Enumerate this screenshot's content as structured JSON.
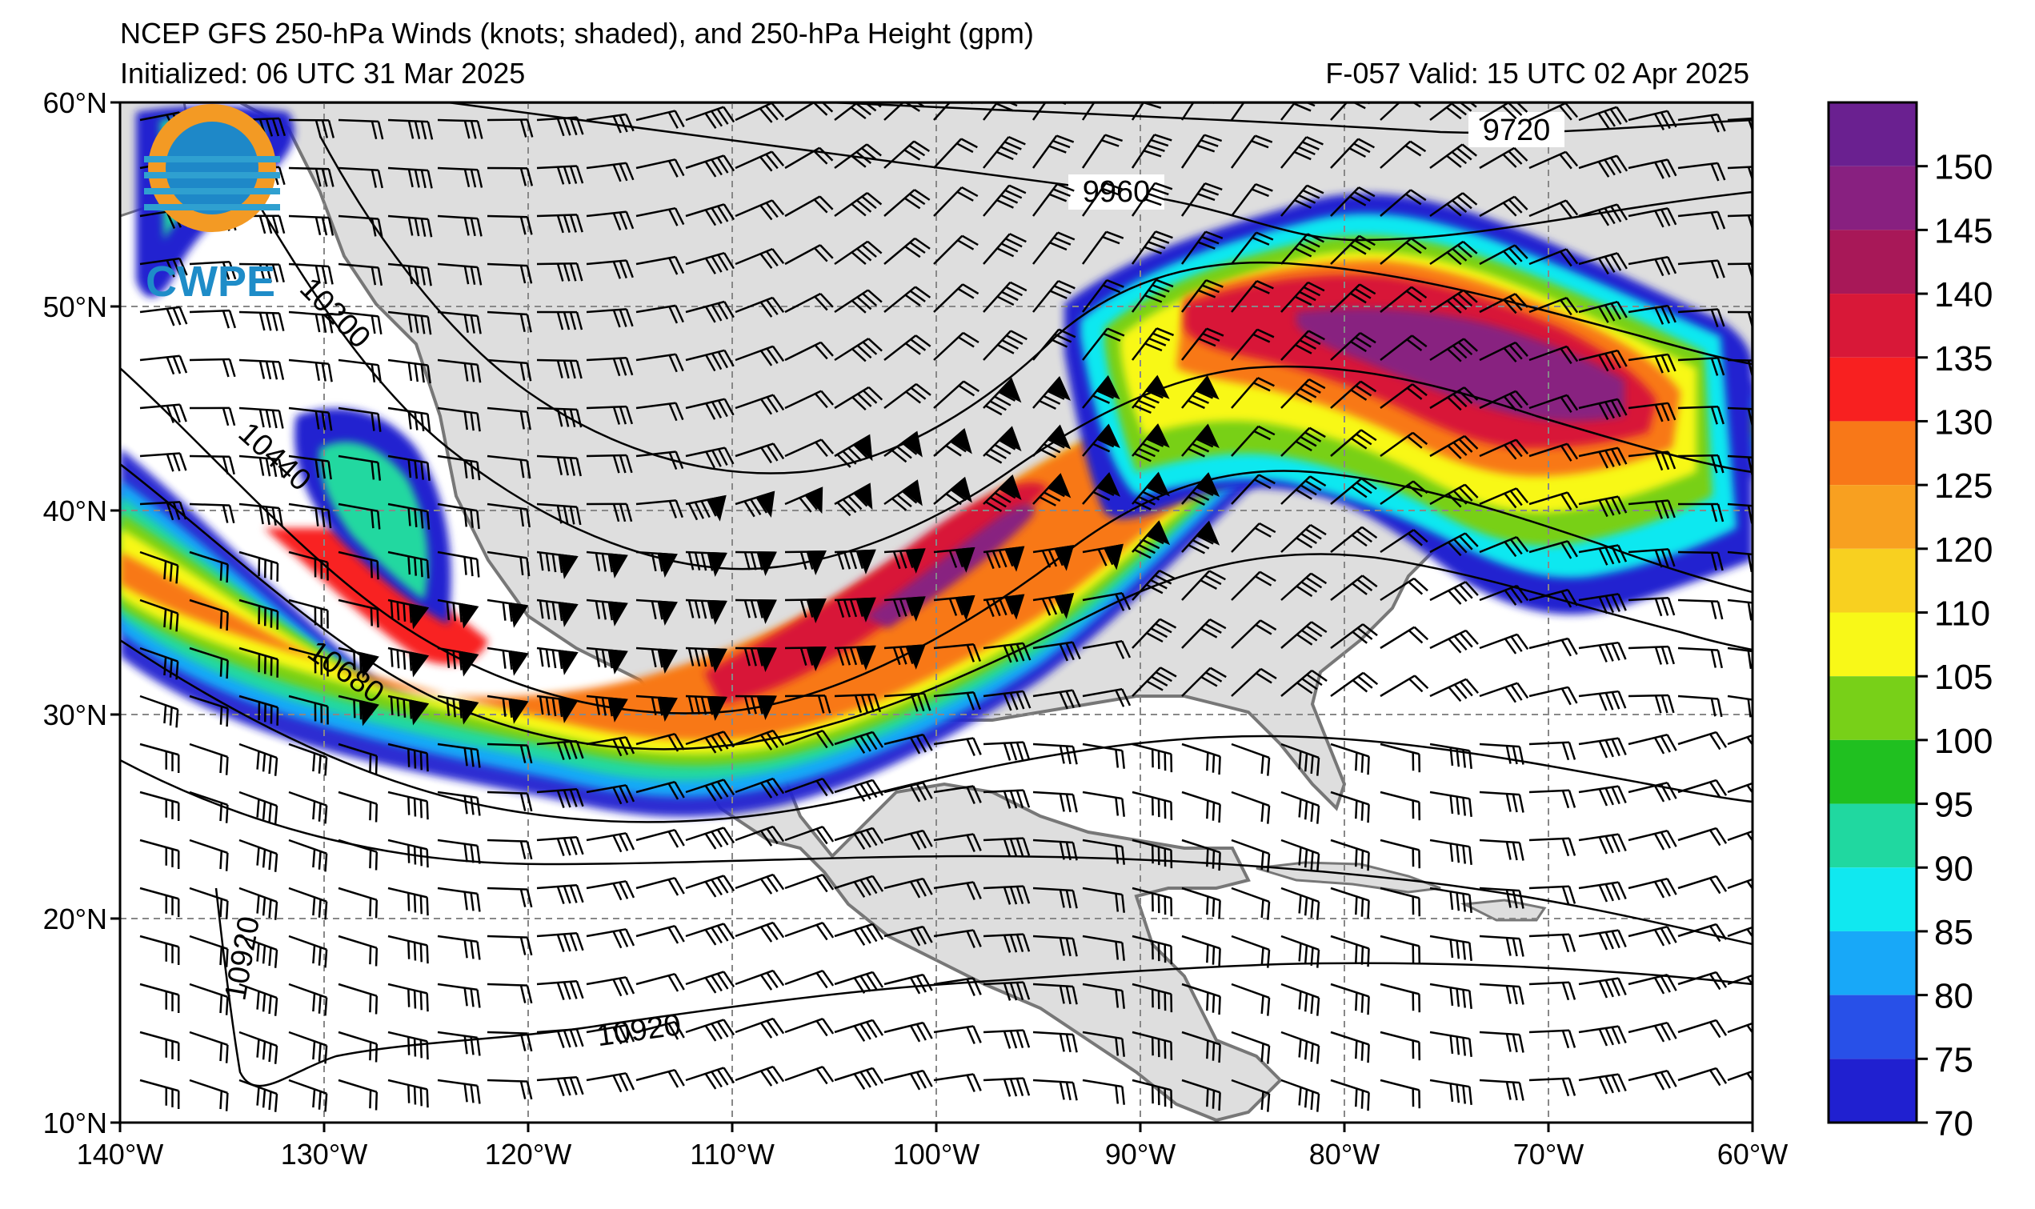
{
  "header": {
    "title": "NCEP GFS 250-hPa Winds (knots; shaded), and 250-hPa Height (gpm)",
    "initialized": "Initialized: 06 UTC 31 Mar 2025",
    "valid": "F-057  Valid: 15 UTC 02 Apr 2025"
  },
  "logo": {
    "text": "CWPE"
  },
  "lat_labels": [
    "60°N",
    "50°N",
    "40°N",
    "30°N",
    "20°N",
    "10°N"
  ],
  "lon_labels": [
    "140°W",
    "130°W",
    "120°W",
    "110°W",
    "100°W",
    "90°W",
    "80°W",
    "70°W",
    "60°W"
  ],
  "colorbar": {
    "ticks": [
      "70",
      "75",
      "80",
      "85",
      "90",
      "95",
      "100",
      "105",
      "110",
      "120",
      "125",
      "130",
      "135",
      "140",
      "145",
      "150"
    ],
    "colors": [
      "#2020d0",
      "#2850e8",
      "#18a8f8",
      "#10e8f0",
      "#20d8a0",
      "#20c020",
      "#78d018",
      "#f8f818",
      "#f8d020",
      "#f8a020",
      "#f87818",
      "#f82020",
      "#d81838",
      "#a81858",
      "#882080",
      "#6a2090"
    ]
  },
  "contours": {
    "labels": [
      "9720",
      "9960",
      "10200",
      "10440",
      "10680",
      "10920",
      "10920"
    ]
  },
  "colors": {
    "land": "#dedede",
    "ocean": "#ffffff",
    "grid": "#888888",
    "coast": "#777777"
  }
}
